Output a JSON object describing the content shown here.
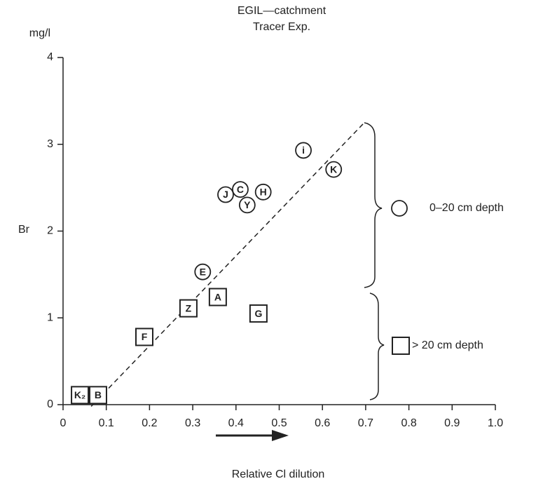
{
  "chart_data": {
    "type": "scatter",
    "title": "EGIL—catchment",
    "subtitle": "Tracer Exp.",
    "x_label": "Relative Cl dilution",
    "y_label": "Br",
    "y_unit": "mg/l",
    "xlim": [
      0,
      1
    ],
    "ylim": [
      0,
      4
    ],
    "xticks": [
      0,
      0.1,
      0.2,
      0.3,
      0.4,
      0.5,
      0.6,
      0.7,
      0.8,
      0.9,
      {
        "value": 1,
        "label": "1.0"
      }
    ],
    "yticks": [
      0,
      1,
      2,
      3,
      4
    ],
    "series": [
      {
        "name": "0–20 cm depth",
        "marker": "circle",
        "color": "#222222",
        "point_labels": [
          "i",
          "K",
          "J",
          "C",
          "H",
          "Y",
          "E"
        ],
        "x": [
          0.556,
          0.626,
          0.376,
          0.41,
          0.463,
          0.426,
          0.323
        ],
        "values": [
          2.93,
          2.71,
          2.42,
          2.48,
          2.45,
          2.3,
          1.53
        ]
      },
      {
        "name": "> 20 cm depth",
        "marker": "square",
        "color": "#222222",
        "point_labels": [
          "A",
          "Z",
          "G",
          "F",
          "K₂",
          "B"
        ],
        "x": [
          0.358,
          0.29,
          0.452,
          0.188,
          0.039,
          0.081
        ],
        "values": [
          1.24,
          1.11,
          1.05,
          0.78,
          0.11,
          0.11
        ]
      }
    ],
    "trend_line": {
      "x": [
        0.065,
        0.697
      ],
      "y": [
        -0.02,
        3.25
      ]
    }
  }
}
